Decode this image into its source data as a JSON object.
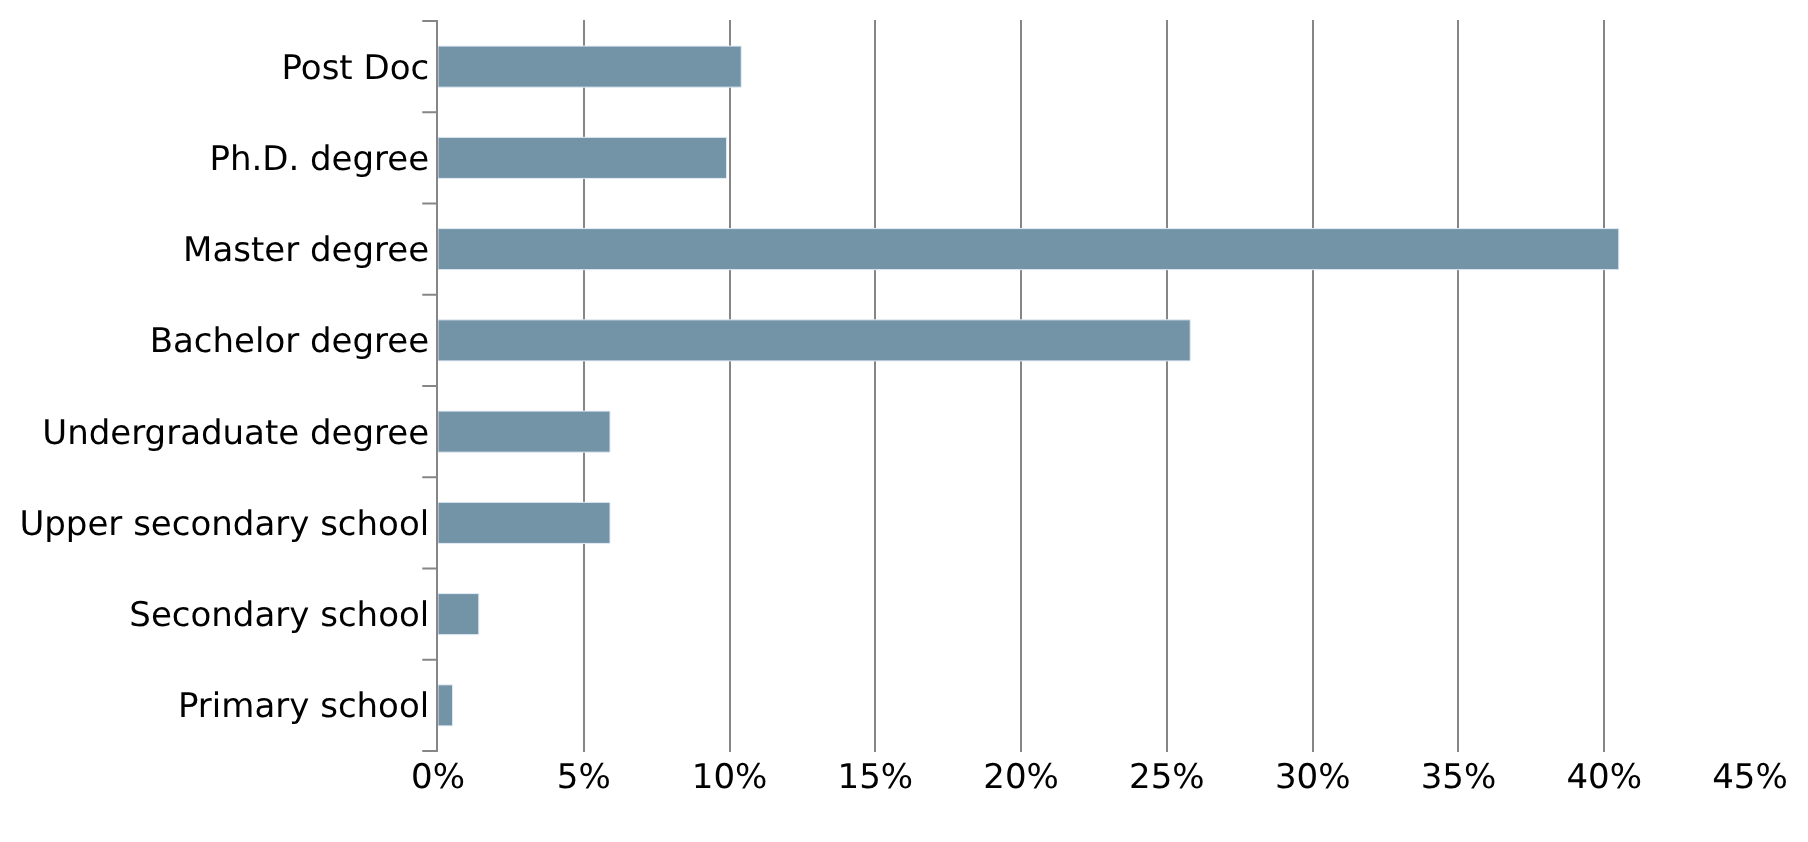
{
  "chart_data": {
    "type": "bar",
    "orientation": "horizontal",
    "categories": [
      "Post Doc",
      "Ph.D. degree",
      "Master degree",
      "Bachelor degree",
      "Undergraduate degree",
      "Upper secondary school",
      "Secondary school",
      "Primary school"
    ],
    "values": [
      10.4,
      9.9,
      40.5,
      25.8,
      5.9,
      5.9,
      1.4,
      0.5
    ],
    "color": "#7393a7",
    "xlim": [
      0,
      45
    ],
    "xticks": [
      {
        "value": 0,
        "label": "0%"
      },
      {
        "value": 5,
        "label": "5%"
      },
      {
        "value": 10,
        "label": "10%"
      },
      {
        "value": 15,
        "label": "15%"
      },
      {
        "value": 20,
        "label": "20%"
      },
      {
        "value": 25,
        "label": "25%"
      },
      {
        "value": 30,
        "label": "30%"
      },
      {
        "value": 35,
        "label": "35%"
      },
      {
        "value": 40,
        "label": "40%"
      },
      {
        "value": 45,
        "label": "45%"
      }
    ],
    "grid": "x",
    "legend": false
  }
}
